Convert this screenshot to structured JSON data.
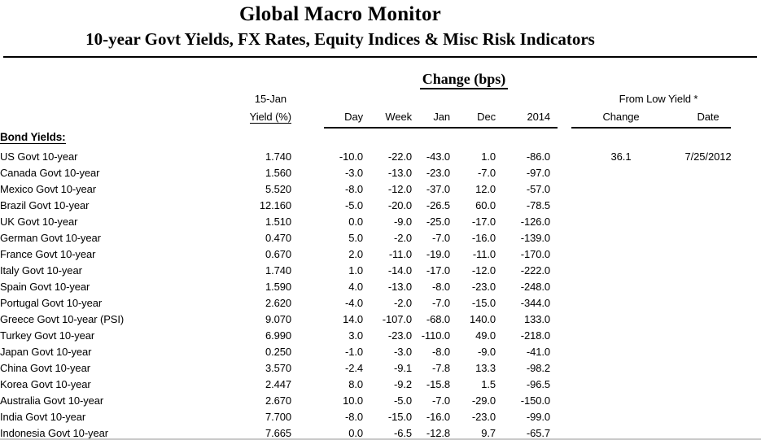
{
  "title": "Global Macro Monitor",
  "subtitle": "10-year Govt Yields, FX Rates, Equity Indices & Misc Risk Indicators",
  "table": {
    "group_headers": {
      "change_bps": "Change (bps)",
      "from_low_yield": "From Low Yield *"
    },
    "columns": {
      "date_label": "15-Jan",
      "yield_label": "Yield (%)",
      "change_cols": [
        "Day",
        "Week",
        "Jan",
        "Dec",
        "2014"
      ],
      "low_yield_cols": [
        "Change",
        "Date"
      ]
    },
    "section_label": "Bond Yields:",
    "rows": [
      {
        "name": "US Govt 10-year",
        "yield": "1.740",
        "day": "-10.0",
        "week": "-22.0",
        "jan": "-43.0",
        "dec": "1.0",
        "y2014": "-86.0",
        "low_change": "36.1",
        "low_date": "7/25/2012"
      },
      {
        "name": "Canada Govt 10-year",
        "yield": "1.560",
        "day": "-3.0",
        "week": "-13.0",
        "jan": "-23.0",
        "dec": "-7.0",
        "y2014": "-97.0",
        "low_change": "",
        "low_date": ""
      },
      {
        "name": "Mexico Govt 10-year",
        "yield": "5.520",
        "day": "-8.0",
        "week": "-12.0",
        "jan": "-37.0",
        "dec": "12.0",
        "y2014": "-57.0",
        "low_change": "",
        "low_date": ""
      },
      {
        "name": "Brazil Govt 10-year",
        "yield": "12.160",
        "day": "-5.0",
        "week": "-20.0",
        "jan": "-26.5",
        "dec": "60.0",
        "y2014": "-78.5",
        "low_change": "",
        "low_date": ""
      },
      {
        "name": "UK Govt 10-year",
        "yield": "1.510",
        "day": "0.0",
        "week": "-9.0",
        "jan": "-25.0",
        "dec": "-17.0",
        "y2014": "-126.0",
        "low_change": "",
        "low_date": ""
      },
      {
        "name": "German Govt 10-year",
        "yield": "0.470",
        "day": "5.0",
        "week": "-2.0",
        "jan": "-7.0",
        "dec": "-16.0",
        "y2014": "-139.0",
        "low_change": "",
        "low_date": ""
      },
      {
        "name": "France Govt 10-year",
        "yield": "0.670",
        "day": "2.0",
        "week": "-11.0",
        "jan": "-19.0",
        "dec": "-11.0",
        "y2014": "-170.0",
        "low_change": "",
        "low_date": ""
      },
      {
        "name": "Italy Govt 10-year",
        "yield": "1.740",
        "day": "1.0",
        "week": "-14.0",
        "jan": "-17.0",
        "dec": "-12.0",
        "y2014": "-222.0",
        "low_change": "",
        "low_date": ""
      },
      {
        "name": "Spain Govt 10-year",
        "yield": "1.590",
        "day": "4.0",
        "week": "-13.0",
        "jan": "-8.0",
        "dec": "-23.0",
        "y2014": "-248.0",
        "low_change": "",
        "low_date": ""
      },
      {
        "name": "Portugal Govt 10-year",
        "yield": "2.620",
        "day": "-4.0",
        "week": "-2.0",
        "jan": "-7.0",
        "dec": "-15.0",
        "y2014": "-344.0",
        "low_change": "",
        "low_date": ""
      },
      {
        "name": "Greece Govt 10-year (PSI)",
        "yield": "9.070",
        "day": "14.0",
        "week": "-107.0",
        "jan": "-68.0",
        "dec": "140.0",
        "y2014": "133.0",
        "low_change": "",
        "low_date": ""
      },
      {
        "name": "Turkey Govt 10-year",
        "yield": "6.990",
        "day": "3.0",
        "week": "-23.0",
        "jan": "-110.0",
        "dec": "49.0",
        "y2014": "-218.0",
        "low_change": "",
        "low_date": ""
      },
      {
        "name": "Japan Govt 10-year",
        "yield": "0.250",
        "day": "-1.0",
        "week": "-3.0",
        "jan": "-8.0",
        "dec": "-9.0",
        "y2014": "-41.0",
        "low_change": "",
        "low_date": ""
      },
      {
        "name": "China Govt 10-year",
        "yield": "3.570",
        "day": "-2.4",
        "week": "-9.1",
        "jan": "-7.8",
        "dec": "13.3",
        "y2014": "-98.2",
        "low_change": "",
        "low_date": ""
      },
      {
        "name": "Korea Govt 10-year",
        "yield": "2.447",
        "day": "8.0",
        "week": "-9.2",
        "jan": "-15.8",
        "dec": "1.5",
        "y2014": "-96.5",
        "low_change": "",
        "low_date": ""
      },
      {
        "name": "Australia Govt 10-year",
        "yield": "2.670",
        "day": "10.0",
        "week": "-5.0",
        "jan": "-7.0",
        "dec": "-29.0",
        "y2014": "-150.0",
        "low_change": "",
        "low_date": ""
      },
      {
        "name": "India Govt 10-year",
        "yield": "7.700",
        "day": "-8.0",
        "week": "-15.0",
        "jan": "-16.0",
        "dec": "-23.0",
        "y2014": "-99.0",
        "low_change": "",
        "low_date": ""
      },
      {
        "name": "Indonesia Govt 10-year",
        "yield": "7.665",
        "day": "0.0",
        "week": "-6.5",
        "jan": "-12.8",
        "dec": "9.7",
        "y2014": "-65.7",
        "low_change": "",
        "low_date": ""
      }
    ]
  }
}
